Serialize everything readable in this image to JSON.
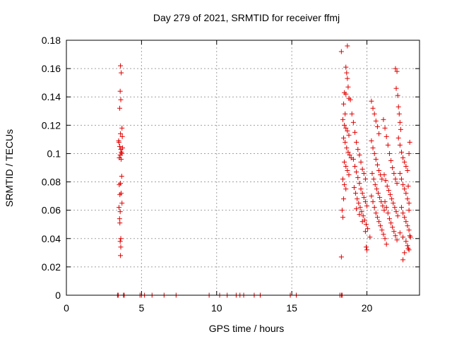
{
  "chart_data": {
    "type": "scatter",
    "title": "Day 279 of 2021, SRMTID for receiver ffmj",
    "xlabel": "GPS time / hours",
    "ylabel": "SRMTID / TECUs",
    "xlim": [
      0,
      23.5
    ],
    "ylim": [
      0,
      0.18
    ],
    "xticks": [
      0,
      5,
      10,
      15,
      20
    ],
    "yticks": [
      0,
      0.02,
      0.04,
      0.06,
      0.08,
      0.1,
      0.12,
      0.14,
      0.16,
      0.18
    ],
    "ytick_labels": [
      "0",
      "0.02",
      "0.04",
      "0.06",
      "0.08",
      "0.1",
      "0.12",
      "0.14",
      "0.16",
      "0.18"
    ],
    "grid": true,
    "legend": "none",
    "marker_color": "#e00000",
    "series": [
      {
        "marker": "plus",
        "points": [
          [
            3.6,
            0.162
          ],
          [
            3.65,
            0.157
          ],
          [
            3.58,
            0.144
          ],
          [
            3.62,
            0.138
          ],
          [
            3.55,
            0.132
          ],
          [
            3.7,
            0.118
          ],
          [
            3.6,
            0.114
          ],
          [
            3.72,
            0.112
          ],
          [
            3.5,
            0.108
          ],
          [
            3.55,
            0.105
          ],
          [
            3.62,
            0.103
          ],
          [
            3.66,
            0.101
          ],
          [
            3.58,
            0.099
          ],
          [
            3.7,
            0.1
          ],
          [
            3.52,
            0.097
          ],
          [
            3.64,
            0.096
          ],
          [
            3.74,
            0.104
          ],
          [
            3.48,
            0.109
          ],
          [
            3.68,
            0.084
          ],
          [
            3.6,
            0.079
          ],
          [
            3.52,
            0.078
          ],
          [
            3.64,
            0.072
          ],
          [
            3.56,
            0.071
          ],
          [
            3.7,
            0.065
          ],
          [
            3.5,
            0.062
          ],
          [
            3.58,
            0.059
          ],
          [
            3.54,
            0.054
          ],
          [
            3.56,
            0.051
          ],
          [
            3.62,
            0.04
          ],
          [
            3.58,
            0.038
          ],
          [
            3.62,
            0.034
          ],
          [
            3.6,
            0.028
          ],
          [
            3.4,
            0
          ],
          [
            3.45,
            0
          ],
          [
            3.8,
            0
          ],
          [
            3.85,
            0
          ],
          [
            4.9,
            0
          ],
          [
            5.0,
            0
          ],
          [
            5.2,
            0
          ],
          [
            5.7,
            0
          ],
          [
            6.5,
            0
          ],
          [
            7.3,
            0
          ],
          [
            9.5,
            0
          ],
          [
            10.2,
            0
          ],
          [
            10.7,
            0
          ],
          [
            11.3,
            0
          ],
          [
            11.55,
            0
          ],
          [
            11.8,
            0
          ],
          [
            12.5,
            0
          ],
          [
            12.9,
            0
          ],
          [
            14.9,
            0
          ],
          [
            15.3,
            0
          ],
          [
            18.2,
            0
          ],
          [
            18.3,
            0
          ],
          [
            18.35,
            0
          ],
          [
            18.3,
            0.172
          ],
          [
            18.7,
            0.176
          ],
          [
            18.6,
            0.161
          ],
          [
            18.65,
            0.157
          ],
          [
            18.7,
            0.153
          ],
          [
            18.75,
            0.147
          ],
          [
            18.5,
            0.143
          ],
          [
            18.6,
            0.142
          ],
          [
            18.8,
            0.139
          ],
          [
            18.9,
            0.138
          ],
          [
            18.45,
            0.135
          ],
          [
            18.55,
            0.128
          ],
          [
            18.4,
            0.124
          ],
          [
            18.5,
            0.12
          ],
          [
            18.6,
            0.118
          ],
          [
            18.7,
            0.116
          ],
          [
            18.8,
            0.113
          ],
          [
            18.45,
            0.111
          ],
          [
            18.55,
            0.108
          ],
          [
            18.65,
            0.104
          ],
          [
            18.75,
            0.101
          ],
          [
            18.85,
            0.099
          ],
          [
            18.95,
            0.097
          ],
          [
            18.5,
            0.094
          ],
          [
            18.6,
            0.091
          ],
          [
            18.7,
            0.088
          ],
          [
            18.8,
            0.085
          ],
          [
            18.4,
            0.082
          ],
          [
            18.5,
            0.078
          ],
          [
            18.6,
            0.075
          ],
          [
            18.45,
            0.068
          ],
          [
            18.35,
            0.06
          ],
          [
            18.4,
            0.055
          ],
          [
            18.3,
            0.027
          ],
          [
            19.0,
            0.128
          ],
          [
            19.1,
            0.122
          ],
          [
            19.2,
            0.115
          ],
          [
            19.3,
            0.108
          ],
          [
            19.4,
            0.103
          ],
          [
            19.5,
            0.099
          ],
          [
            19.6,
            0.094
          ],
          [
            19.7,
            0.089
          ],
          [
            19.8,
            0.086
          ],
          [
            19.9,
            0.082
          ],
          [
            19.1,
            0.096
          ],
          [
            19.2,
            0.091
          ],
          [
            19.3,
            0.087
          ],
          [
            19.4,
            0.083
          ],
          [
            19.5,
            0.079
          ],
          [
            19.6,
            0.075
          ],
          [
            19.7,
            0.072
          ],
          [
            19.8,
            0.069
          ],
          [
            19.9,
            0.066
          ],
          [
            20.0,
            0.063
          ],
          [
            19.15,
            0.076
          ],
          [
            19.25,
            0.072
          ],
          [
            19.35,
            0.068
          ],
          [
            19.45,
            0.065
          ],
          [
            19.55,
            0.062
          ],
          [
            19.65,
            0.059
          ],
          [
            19.75,
            0.056
          ],
          [
            19.85,
            0.053
          ],
          [
            19.95,
            0.05
          ],
          [
            20.05,
            0.047
          ],
          [
            19.3,
            0.061
          ],
          [
            19.5,
            0.057
          ],
          [
            19.7,
            0.052
          ],
          [
            19.9,
            0.045
          ],
          [
            19.95,
            0.034
          ],
          [
            20.0,
            0.032
          ],
          [
            20.2,
            0.041
          ],
          [
            20.3,
            0.137
          ],
          [
            20.4,
            0.132
          ],
          [
            20.5,
            0.128
          ],
          [
            20.6,
            0.123
          ],
          [
            20.7,
            0.119
          ],
          [
            20.8,
            0.114
          ],
          [
            20.3,
            0.109
          ],
          [
            20.4,
            0.104
          ],
          [
            20.5,
            0.1
          ],
          [
            20.6,
            0.096
          ],
          [
            20.7,
            0.092
          ],
          [
            20.8,
            0.088
          ],
          [
            20.9,
            0.085
          ],
          [
            21.0,
            0.082
          ],
          [
            20.35,
            0.086
          ],
          [
            20.45,
            0.082
          ],
          [
            20.55,
            0.078
          ],
          [
            20.65,
            0.075
          ],
          [
            20.75,
            0.072
          ],
          [
            20.85,
            0.069
          ],
          [
            20.95,
            0.066
          ],
          [
            21.05,
            0.063
          ],
          [
            21.15,
            0.06
          ],
          [
            20.3,
            0.07
          ],
          [
            20.4,
            0.066
          ],
          [
            20.5,
            0.062
          ],
          [
            20.6,
            0.058
          ],
          [
            20.7,
            0.055
          ],
          [
            20.8,
            0.052
          ],
          [
            20.9,
            0.049
          ],
          [
            21.0,
            0.046
          ],
          [
            21.1,
            0.043
          ],
          [
            21.2,
            0.04
          ],
          [
            21.1,
            0.124
          ],
          [
            21.2,
            0.118
          ],
          [
            21.3,
            0.112
          ],
          [
            21.4,
            0.106
          ],
          [
            21.5,
            0.1
          ],
          [
            21.6,
            0.095
          ],
          [
            21.7,
            0.09
          ],
          [
            21.8,
            0.086
          ],
          [
            21.9,
            0.082
          ],
          [
            22.0,
            0.079
          ],
          [
            21.15,
            0.085
          ],
          [
            21.25,
            0.081
          ],
          [
            21.35,
            0.077
          ],
          [
            21.45,
            0.074
          ],
          [
            21.55,
            0.071
          ],
          [
            21.65,
            0.068
          ],
          [
            21.75,
            0.065
          ],
          [
            21.85,
            0.062
          ],
          [
            21.95,
            0.059
          ],
          [
            22.05,
            0.056
          ],
          [
            21.2,
            0.066
          ],
          [
            21.3,
            0.062
          ],
          [
            21.4,
            0.058
          ],
          [
            21.5,
            0.054
          ],
          [
            21.6,
            0.051
          ],
          [
            21.7,
            0.048
          ],
          [
            21.8,
            0.045
          ],
          [
            21.9,
            0.042
          ],
          [
            22.0,
            0.039
          ],
          [
            21.3,
            0.036
          ],
          [
            21.9,
            0.16
          ],
          [
            22.0,
            0.158
          ],
          [
            21.95,
            0.146
          ],
          [
            22.05,
            0.141
          ],
          [
            22.1,
            0.133
          ],
          [
            22.15,
            0.128
          ],
          [
            22.2,
            0.122
          ],
          [
            22.25,
            0.117
          ],
          [
            22.1,
            0.111
          ],
          [
            22.2,
            0.106
          ],
          [
            22.3,
            0.101
          ],
          [
            22.4,
            0.097
          ],
          [
            22.5,
            0.094
          ],
          [
            22.6,
            0.091
          ],
          [
            22.7,
            0.088
          ],
          [
            22.2,
            0.086
          ],
          [
            22.3,
            0.082
          ],
          [
            22.4,
            0.078
          ],
          [
            22.5,
            0.075
          ],
          [
            22.6,
            0.072
          ],
          [
            22.7,
            0.068
          ],
          [
            22.8,
            0.065
          ],
          [
            22.3,
            0.062
          ],
          [
            22.4,
            0.058
          ],
          [
            22.5,
            0.055
          ],
          [
            22.6,
            0.052
          ],
          [
            22.7,
            0.049
          ],
          [
            22.8,
            0.046
          ],
          [
            22.2,
            0.044
          ],
          [
            22.4,
            0.041
          ],
          [
            22.6,
            0.038
          ],
          [
            22.7,
            0.035
          ],
          [
            22.8,
            0.032
          ],
          [
            22.5,
            0.03
          ],
          [
            22.4,
            0.025
          ],
          [
            22.85,
            0.108
          ],
          [
            22.8,
            0.1
          ],
          [
            22.75,
            0.077
          ],
          [
            22.8,
            0.06
          ],
          [
            22.85,
            0.042
          ],
          [
            22.9,
            0.041
          ],
          [
            22.75,
            0.033
          ]
        ]
      }
    ]
  }
}
